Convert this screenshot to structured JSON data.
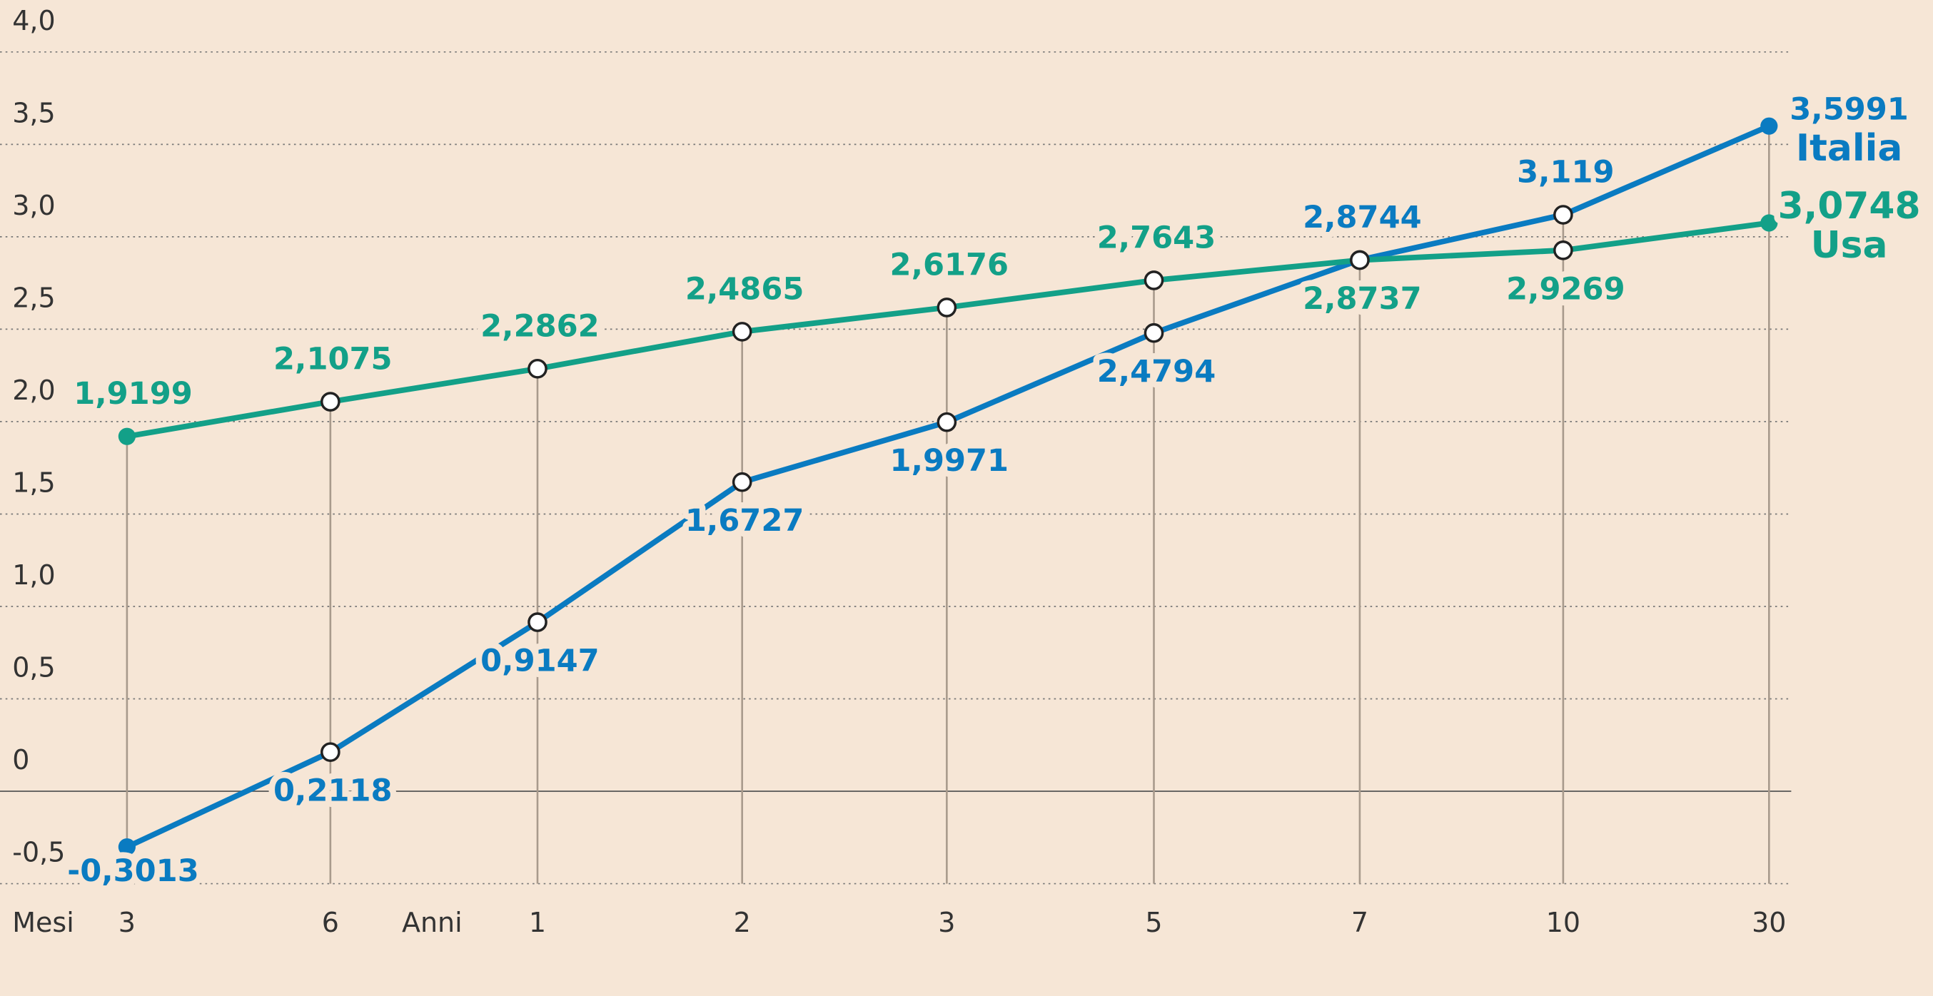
{
  "chart_data": {
    "type": "line",
    "categories": [
      "3",
      "6",
      "1",
      "2",
      "3",
      "5",
      "7",
      "10",
      "30"
    ],
    "x_group_labels": [
      "Mesi",
      "Anni"
    ],
    "series": [
      {
        "name": "Italia",
        "color": "#0a7bc1",
        "values": [
          -0.3013,
          0.2118,
          0.9147,
          1.6727,
          1.9971,
          2.4794,
          2.8744,
          3.119,
          3.5991
        ],
        "value_labels": [
          "-0,3013",
          "0,2118",
          "0,9147",
          "1,6727",
          "1,9971",
          "2,4794",
          "2,8744",
          "3,119",
          "3,5991"
        ]
      },
      {
        "name": "Usa",
        "color": "#13a088",
        "values": [
          1.9199,
          2.1075,
          2.2862,
          2.4865,
          2.6176,
          2.7643,
          2.8737,
          2.9269,
          3.0748
        ],
        "value_labels": [
          "1,9199",
          "2,1075",
          "2,2862",
          "2,4865",
          "2,6176",
          "2,7643",
          "2,8737",
          "2,9269",
          "3,0748"
        ]
      }
    ],
    "ylim": [
      -0.5,
      4.0
    ],
    "yticks": [
      {
        "value": -0.5,
        "label": "-0,5"
      },
      0,
      {
        "value": 0.5,
        "label": "0,5"
      },
      {
        "value": 1.0,
        "label": "1,0"
      },
      {
        "value": 1.5,
        "label": "1,5"
      },
      {
        "value": 2.0,
        "label": "2,0"
      },
      {
        "value": 2.5,
        "label": "2,5"
      },
      {
        "value": 3.0,
        "label": "3,0"
      },
      {
        "value": 3.5,
        "label": "3,5"
      },
      {
        "value": 4.0,
        "label": "4,0"
      }
    ],
    "grid": true
  }
}
